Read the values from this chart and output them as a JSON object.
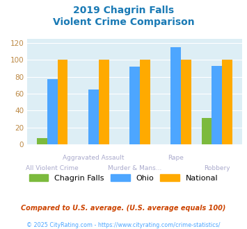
{
  "title_line1": "2019 Chagrin Falls",
  "title_line2": "Violent Crime Comparison",
  "categories": [
    "All Violent Crime",
    "Aggravated Assault",
    "Murder & Mans...",
    "Rape",
    "Robbery"
  ],
  "chagrin_falls": [
    7,
    0,
    0,
    0,
    31
  ],
  "ohio": [
    77,
    65,
    92,
    115,
    93
  ],
  "national": [
    100,
    100,
    100,
    100,
    100
  ],
  "bar_colors": {
    "chagrin_falls": "#7cba3d",
    "ohio": "#4da6ff",
    "national": "#ffaa00"
  },
  "ylim": [
    0,
    125
  ],
  "yticks": [
    0,
    20,
    40,
    60,
    80,
    100,
    120
  ],
  "bg_color": "#ddeef5",
  "title_color": "#1a7ab5",
  "label_row1_color": "#aaaacc",
  "label_row2_color": "#aaaacc",
  "legend_labels": [
    "Chagrin Falls",
    "Ohio",
    "National"
  ],
  "footnote1": "Compared to U.S. average. (U.S. average equals 100)",
  "footnote2": "© 2025 CityRating.com - https://www.cityrating.com/crime-statistics/",
  "footnote1_color": "#cc4400",
  "footnote2_color": "#4da6ff"
}
